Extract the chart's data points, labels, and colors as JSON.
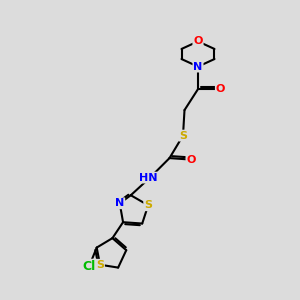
{
  "background_color": "#dcdcdc",
  "atom_colors": {
    "C": "#000000",
    "N": "#0000ff",
    "O": "#ff0000",
    "S": "#ccaa00",
    "Cl": "#00bb00",
    "H": "#000000"
  },
  "bond_color": "#000000",
  "bond_width": 1.5,
  "font_size": 8,
  "fig_size": [
    3.0,
    3.0
  ],
  "dpi": 100,
  "xlim": [
    0,
    10
  ],
  "ylim": [
    0,
    10
  ]
}
